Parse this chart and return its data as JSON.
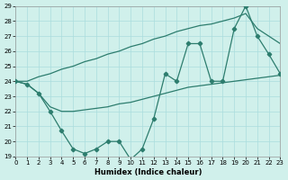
{
  "xlabel": "Humidex (Indice chaleur)",
  "x": [
    0,
    1,
    2,
    3,
    4,
    5,
    6,
    7,
    8,
    9,
    10,
    11,
    12,
    13,
    14,
    15,
    16,
    17,
    18,
    19,
    20,
    21,
    22,
    23
  ],
  "upper_smooth": [
    24,
    24,
    24.3,
    24.5,
    24.8,
    25.0,
    25.3,
    25.5,
    25.8,
    26.0,
    26.3,
    26.5,
    26.8,
    27.0,
    27.3,
    27.5,
    27.7,
    27.8,
    28.0,
    28.2,
    28.5,
    27.5,
    27.0,
    26.5
  ],
  "lower_smooth": [
    24,
    23.8,
    23.2,
    22.3,
    22.0,
    22.0,
    22.1,
    22.2,
    22.3,
    22.5,
    22.6,
    22.8,
    23.0,
    23.2,
    23.4,
    23.6,
    23.7,
    23.8,
    23.9,
    24.0,
    24.1,
    24.2,
    24.3,
    24.4
  ],
  "zigzag": [
    24,
    23.8,
    23.2,
    22.0,
    20.7,
    19.5,
    19.2,
    19.5,
    20.0,
    20.0,
    18.8,
    19.5,
    21.5,
    24.5,
    24.0,
    26.5,
    26.5,
    24.0,
    24.0,
    27.5,
    29.0,
    27.0,
    25.8,
    24.5
  ],
  "ylim": [
    19,
    29
  ],
  "xlim": [
    0,
    23
  ],
  "yticks": [
    19,
    20,
    21,
    22,
    23,
    24,
    25,
    26,
    27,
    28,
    29
  ],
  "xticks": [
    0,
    1,
    2,
    3,
    4,
    5,
    6,
    7,
    8,
    9,
    10,
    11,
    12,
    13,
    14,
    15,
    16,
    17,
    18,
    19,
    20,
    21,
    22,
    23
  ],
  "line_color": "#2d7d6e",
  "bg_color": "#d0f0eb",
  "grid_color": "#aadddd"
}
